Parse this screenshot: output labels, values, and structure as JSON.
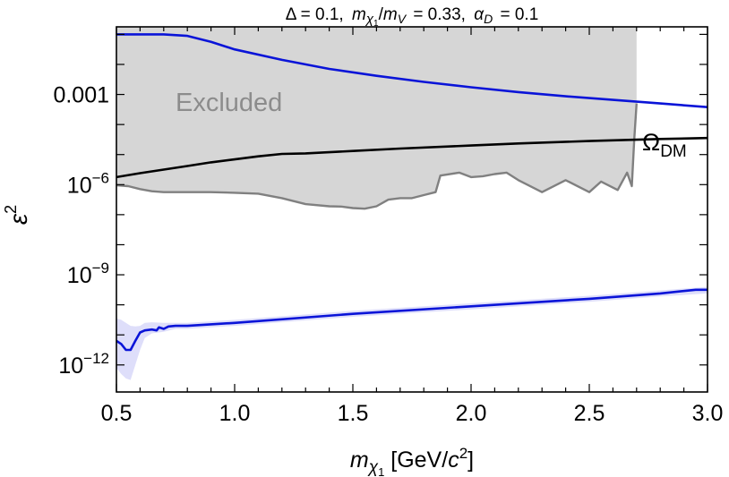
{
  "chart_data": {
    "type": "line",
    "title": {
      "delta_part": "Δ = 0.1,",
      "m_symbol": "m",
      "chi_symbol": "χ",
      "one": "1",
      "slash": "/",
      "v_symbol": "V",
      "ratio_value": "= 0.33,",
      "alpha_symbol": "α",
      "d_symbol": "D",
      "alpha_value": "= 0.1"
    },
    "xlabel": {
      "m_symbol": "m",
      "chi_symbol": "χ",
      "one": "1",
      "units_open": " [GeV/",
      "c_symbol": "c",
      "exp": "2",
      "units_close": "]"
    },
    "ylabel": {
      "symbol": "ε",
      "exp": "2"
    },
    "xlim": [
      0.5,
      3.0
    ],
    "ylim_log10": [
      -12.9,
      -0.75
    ],
    "y_scale": "log",
    "x_ticks": [
      {
        "value": 0.5,
        "label": "0.5"
      },
      {
        "value": 1.0,
        "label": "1.0"
      },
      {
        "value": 1.5,
        "label": "1.5"
      },
      {
        "value": 2.0,
        "label": "2.0"
      },
      {
        "value": 2.5,
        "label": "2.5"
      },
      {
        "value": 3.0,
        "label": "3.0"
      }
    ],
    "y_ticks_major": [
      {
        "log10": -3,
        "label": "0.001"
      },
      {
        "log10": -6,
        "base": "10",
        "exp": "−6"
      },
      {
        "log10": -9,
        "base": "10",
        "exp": "−9"
      },
      {
        "log10": -12,
        "base": "10",
        "exp": "−12"
      }
    ],
    "annotations": {
      "excluded": "Excluded",
      "omega_symbol": "Ω",
      "omega_subscript": "DM"
    },
    "series": [
      {
        "name": "Excluded region boundary",
        "kind": "area",
        "color": "#808080",
        "fill": "#d6d6d6",
        "x": [
          0.5,
          0.55,
          0.6,
          0.65,
          0.7,
          0.8,
          0.9,
          1.0,
          1.1,
          1.2,
          1.3,
          1.4,
          1.45,
          1.5,
          1.55,
          1.6,
          1.65,
          1.7,
          1.75,
          1.8,
          1.85,
          1.87,
          1.95,
          2.0,
          2.05,
          2.1,
          2.15,
          2.2,
          2.3,
          2.4,
          2.5,
          2.55,
          2.62,
          2.66,
          2.68,
          2.69,
          2.7
        ],
        "log10": [
          -6.02,
          -6.05,
          -6.15,
          -6.22,
          -6.25,
          -6.25,
          -6.25,
          -6.27,
          -6.3,
          -6.45,
          -6.65,
          -6.72,
          -6.73,
          -6.78,
          -6.8,
          -6.72,
          -6.5,
          -6.45,
          -6.45,
          -6.35,
          -6.25,
          -5.7,
          -5.6,
          -5.75,
          -5.72,
          -5.65,
          -5.6,
          -5.85,
          -6.25,
          -5.85,
          -6.25,
          -5.9,
          -6.18,
          -5.6,
          -6.05,
          -4.5,
          -3.3
        ]
      },
      {
        "name": "Upper blue limit",
        "kind": "line",
        "color": "#0a14d8",
        "x": [
          0.5,
          0.6,
          0.7,
          0.8,
          0.9,
          1.0,
          1.2,
          1.4,
          1.6,
          1.8,
          2.0,
          2.2,
          2.4,
          2.6,
          2.8,
          3.0
        ],
        "log10": [
          -1.0,
          -1.0,
          -1.0,
          -1.05,
          -1.25,
          -1.5,
          -1.85,
          -2.15,
          -2.38,
          -2.58,
          -2.76,
          -2.92,
          -3.06,
          -3.18,
          -3.3,
          -3.42
        ]
      },
      {
        "name": "Ω_DM relic abundance",
        "kind": "line",
        "color": "#000000",
        "x": [
          0.5,
          0.6,
          0.7,
          0.8,
          0.9,
          1.0,
          1.1,
          1.2,
          1.3,
          1.5,
          1.7,
          2.0,
          2.2,
          2.5,
          2.8,
          3.0
        ],
        "log10": [
          -5.75,
          -5.62,
          -5.5,
          -5.38,
          -5.26,
          -5.16,
          -5.06,
          -4.98,
          -4.96,
          -4.88,
          -4.8,
          -4.7,
          -4.63,
          -4.55,
          -4.48,
          -4.45
        ]
      },
      {
        "name": "Lower blue sensitivity",
        "kind": "line",
        "color": "#0a14d8",
        "x": [
          0.5,
          0.52,
          0.54,
          0.56,
          0.58,
          0.6,
          0.62,
          0.65,
          0.67,
          0.68,
          0.7,
          0.72,
          0.75,
          0.8,
          1.0,
          1.5,
          2.0,
          2.5,
          2.8,
          2.95,
          3.0
        ],
        "log10": [
          -11.2,
          -11.3,
          -11.5,
          -11.5,
          -11.2,
          -10.92,
          -10.85,
          -10.82,
          -10.85,
          -10.75,
          -10.8,
          -10.72,
          -10.7,
          -10.7,
          -10.6,
          -10.3,
          -10.05,
          -9.8,
          -9.62,
          -9.5,
          -9.5
        ]
      },
      {
        "name": "Lower blue uncertainty band",
        "kind": "band",
        "color": "#dcdcfa",
        "x": [
          0.5,
          0.52,
          0.54,
          0.56,
          0.58,
          0.6,
          0.62,
          0.65,
          0.7,
          0.75,
          0.8,
          1.0,
          1.5,
          2.0,
          2.5,
          2.8,
          3.0
        ],
        "upper": [
          -10.45,
          -10.5,
          -10.6,
          -10.7,
          -10.72,
          -10.7,
          -10.6,
          -10.58,
          -10.6,
          -10.6,
          -10.6,
          -10.5,
          -10.2,
          -9.95,
          -9.7,
          -9.52,
          -9.4
        ],
        "lower": [
          -12.1,
          -12.3,
          -12.45,
          -12.5,
          -12.0,
          -11.5,
          -11.1,
          -10.95,
          -10.9,
          -10.8,
          -10.8,
          -10.7,
          -10.4,
          -10.15,
          -9.9,
          -9.72,
          -9.62
        ]
      }
    ]
  }
}
